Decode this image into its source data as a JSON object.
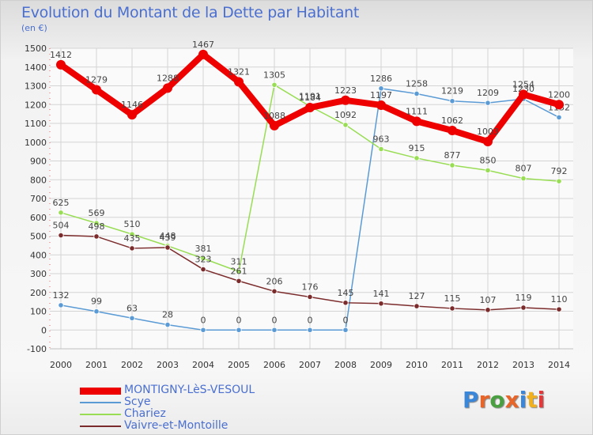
{
  "title": "Evolution du Montant de la Dette par Habitant",
  "unit_label": "(en €)",
  "logo": {
    "text": "Proxiti",
    "colors": [
      "#3a86d8",
      "#e8652a",
      "#4aa040",
      "#e8652a",
      "#3a86d8",
      "#f0b020",
      "#e23a3a"
    ]
  },
  "chart_data": {
    "type": "line",
    "title": "Evolution du Montant de la Dette par Habitant",
    "ylabel": "(en €)",
    "xlabel": "",
    "x": [
      "2000",
      "2001",
      "2002",
      "2003",
      "2004",
      "2005",
      "2006",
      "2007",
      "2008",
      "2009",
      "2010",
      "2011",
      "2012",
      "2013",
      "2014"
    ],
    "ylim": [
      -100,
      1500
    ],
    "yticks": [
      -100,
      0,
      100,
      200,
      300,
      400,
      500,
      600,
      700,
      800,
      900,
      1000,
      1100,
      1200,
      1300,
      1400,
      1500
    ],
    "grid": true,
    "legend_position": "bottom-left",
    "series": [
      {
        "name": "MONTIGNY-LèS-VESOUL",
        "color": "#ee0000",
        "values": [
          1412,
          1279,
          1146,
          1288,
          1467,
          1321,
          1088,
          1184,
          1223,
          1197,
          1111,
          1062,
          1003,
          1254,
          1200
        ]
      },
      {
        "name": "Scye",
        "color": "#5b9bd5",
        "values": [
          132,
          99,
          63,
          28,
          0,
          0,
          0,
          0,
          0,
          1286,
          1258,
          1219,
          1209,
          1230,
          1132
        ]
      },
      {
        "name": "Chariez",
        "color": "#99dd55",
        "values": [
          625,
          569,
          510,
          448,
          381,
          311,
          1305,
          1191,
          1092,
          963,
          915,
          877,
          850,
          807,
          792
        ]
      },
      {
        "name": "Vaivre-et-Montoille",
        "color": "#7b2b2b",
        "values": [
          504,
          498,
          435,
          439,
          323,
          261,
          206,
          176,
          145,
          141,
          127,
          115,
          107,
          119,
          110
        ]
      }
    ]
  }
}
